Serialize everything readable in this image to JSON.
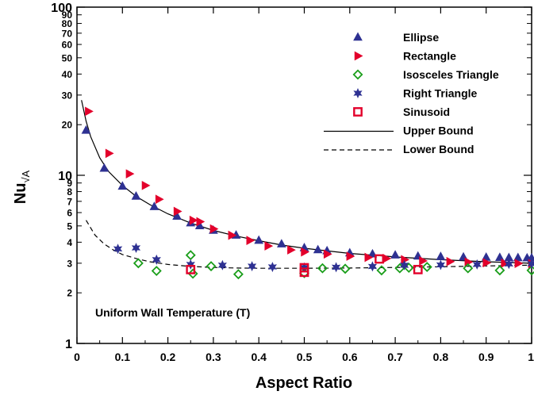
{
  "chart_data": {
    "type": "scatter",
    "xlabel": "Aspect Ratio",
    "ylabel": "Nu",
    "ylabel_subscript": "√A",
    "annotation": "Uniform Wall Temperature (T)",
    "xlim": [
      0,
      1
    ],
    "ylim": [
      1,
      100
    ],
    "yscale": "log",
    "grid": false,
    "legend_position": "top-right",
    "x_ticks": [
      "0",
      "0.1",
      "0.2",
      "0.3",
      "0.4",
      "0.5",
      "0.6",
      "0.7",
      "0.8",
      "0.9",
      "1"
    ],
    "x_tick_values": [
      0,
      0.1,
      0.2,
      0.3,
      0.4,
      0.5,
      0.6,
      0.7,
      0.8,
      0.9,
      1
    ],
    "y_major_ticks": [
      {
        "value": 1,
        "label": "1"
      },
      {
        "value": 10,
        "label": "10"
      },
      {
        "value": 100,
        "label": "100"
      }
    ],
    "y_minor_ticks": [
      {
        "value": 2,
        "label": "2"
      },
      {
        "value": 3,
        "label": "3"
      },
      {
        "value": 4,
        "label": "4"
      },
      {
        "value": 5,
        "label": "5"
      },
      {
        "value": 6,
        "label": "6"
      },
      {
        "value": 7,
        "label": "7"
      },
      {
        "value": 8,
        "label": "8"
      },
      {
        "value": 9,
        "label": "9"
      },
      {
        "value": 20,
        "label": "20"
      },
      {
        "value": 30,
        "label": "30"
      },
      {
        "value": 40,
        "label": "40"
      },
      {
        "value": 50,
        "label": "50"
      },
      {
        "value": 60,
        "label": "60"
      },
      {
        "value": 70,
        "label": "70"
      },
      {
        "value": 80,
        "label": "80"
      },
      {
        "value": 90,
        "label": "90"
      }
    ],
    "series": [
      {
        "name": "Ellipse",
        "marker": "triangle-up",
        "color": "#2e3192",
        "x": [
          0.02,
          0.06,
          0.1,
          0.13,
          0.17,
          0.22,
          0.25,
          0.27,
          0.3,
          0.35,
          0.4,
          0.45,
          0.5,
          0.53,
          0.55,
          0.6,
          0.65,
          0.7,
          0.75,
          0.8,
          0.85,
          0.9,
          0.93,
          0.95,
          0.97,
          0.99,
          1.0
        ],
        "y": [
          18.5,
          11.0,
          8.6,
          7.5,
          6.5,
          5.7,
          5.2,
          5.0,
          4.7,
          4.4,
          4.1,
          3.9,
          3.7,
          3.6,
          3.55,
          3.45,
          3.4,
          3.35,
          3.3,
          3.28,
          3.26,
          3.25,
          3.24,
          3.23,
          3.23,
          3.22,
          3.22
        ]
      },
      {
        "name": "Rectangle",
        "marker": "triangle-right",
        "color": "#e3002b",
        "x": [
          0.025,
          0.07,
          0.115,
          0.15,
          0.18,
          0.22,
          0.255,
          0.27,
          0.3,
          0.34,
          0.38,
          0.42,
          0.47,
          0.5,
          0.55,
          0.6,
          0.64,
          0.68,
          0.72,
          0.76,
          0.82,
          0.86,
          0.9,
          0.94,
          0.97,
          1.0
        ],
        "y": [
          24.0,
          13.5,
          10.2,
          8.7,
          7.2,
          6.1,
          5.4,
          5.3,
          4.8,
          4.4,
          4.1,
          3.8,
          3.6,
          3.5,
          3.4,
          3.3,
          3.25,
          3.2,
          3.15,
          3.1,
          3.07,
          3.05,
          3.02,
          3.0,
          2.99,
          2.98
        ]
      },
      {
        "name": "Isosceles Triangle",
        "marker": "diamond-open",
        "color": "#1a9e1a",
        "x": [
          0.135,
          0.175,
          0.25,
          0.255,
          0.295,
          0.355,
          0.5,
          0.54,
          0.59,
          0.67,
          0.71,
          0.73,
          0.77,
          0.86,
          0.93,
          1.0
        ],
        "y": [
          3.0,
          2.7,
          3.35,
          2.6,
          2.88,
          2.58,
          2.62,
          2.8,
          2.78,
          2.72,
          2.8,
          2.82,
          2.85,
          2.8,
          2.72,
          2.72
        ]
      },
      {
        "name": "Right Triangle",
        "marker": "star",
        "color": "#2e3192",
        "x": [
          0.09,
          0.13,
          0.175,
          0.25,
          0.32,
          0.385,
          0.43,
          0.5,
          0.57,
          0.65,
          0.72,
          0.8,
          0.88,
          0.95,
          1.0
        ],
        "y": [
          3.65,
          3.7,
          3.15,
          2.95,
          2.92,
          2.88,
          2.85,
          2.83,
          2.84,
          2.87,
          2.92,
          2.93,
          2.95,
          2.97,
          2.98
        ]
      },
      {
        "name": "Sinusoid",
        "marker": "square-open",
        "color": "#e3002b",
        "x": [
          0.25,
          0.5,
          0.5,
          0.665,
          0.75
        ],
        "y": [
          2.75,
          2.82,
          2.65,
          3.18,
          2.75
        ]
      },
      {
        "name": "Upper Bound",
        "marker": "line-solid",
        "color": "#000000",
        "x": [
          0.01,
          0.02,
          0.03,
          0.05,
          0.07,
          0.1,
          0.13,
          0.16,
          0.2,
          0.25,
          0.3,
          0.35,
          0.4,
          0.45,
          0.5,
          0.6,
          0.7,
          0.8,
          0.9,
          1.0
        ],
        "y": [
          28.0,
          21.0,
          17.0,
          12.7,
          10.5,
          8.7,
          7.5,
          6.7,
          5.9,
          5.2,
          4.7,
          4.35,
          4.08,
          3.85,
          3.68,
          3.43,
          3.27,
          3.15,
          3.06,
          3.0
        ]
      },
      {
        "name": "Lower Bound",
        "marker": "line-dashed",
        "color": "#000000",
        "x": [
          0.02,
          0.04,
          0.06,
          0.08,
          0.1,
          0.13,
          0.16,
          0.2,
          0.25,
          0.3,
          0.35,
          0.4,
          0.45,
          0.5,
          0.6,
          0.7,
          0.8,
          0.9,
          1.0
        ],
        "y": [
          5.4,
          4.4,
          3.9,
          3.6,
          3.38,
          3.2,
          3.06,
          2.95,
          2.87,
          2.83,
          2.81,
          2.8,
          2.8,
          2.8,
          2.81,
          2.83,
          2.86,
          2.89,
          2.92
        ]
      }
    ]
  }
}
